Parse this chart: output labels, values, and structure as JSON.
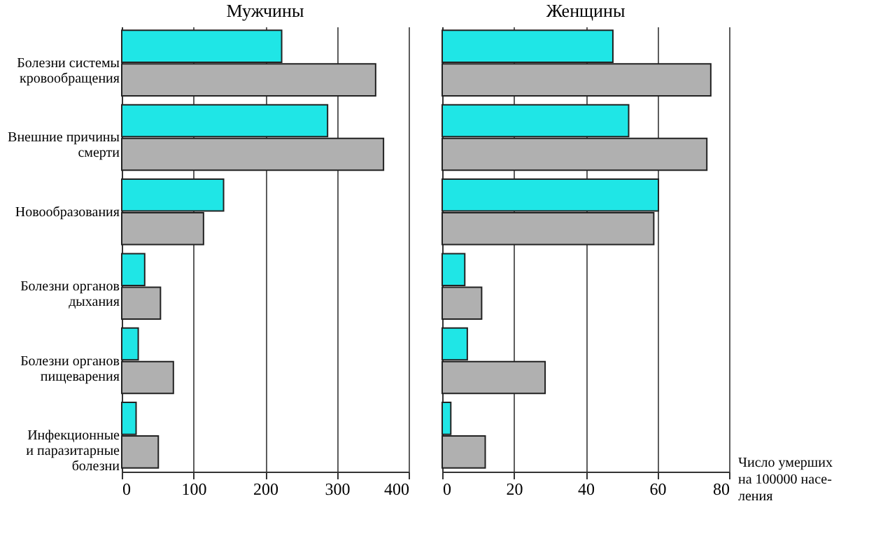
{
  "chart_data": [
    {
      "type": "bar",
      "orientation": "horizontal",
      "title": "Мужчины",
      "categories": [
        "Болезни системы\nкровообращения",
        "Внешние причины\nсмерти",
        "Новообразования",
        "Болезни органов\nдыхания",
        "Болезни органов\nпищеварения",
        "Инфекционные\nи паразитарные\nболезни"
      ],
      "series": [
        {
          "color": "#1fe6e6",
          "values": [
            223,
            287,
            142,
            32,
            23,
            20
          ]
        },
        {
          "color": "#b0b0b0",
          "values": [
            354,
            365,
            114,
            54,
            72,
            51
          ]
        }
      ],
      "xlim": [
        0,
        400
      ],
      "xticks": [
        0,
        100,
        200,
        300,
        400
      ],
      "grid": "x"
    },
    {
      "type": "bar",
      "orientation": "horizontal",
      "title": "Женщины",
      "categories": [
        null,
        null,
        null,
        null,
        null,
        null
      ],
      "series": [
        {
          "color": "#1fe6e6",
          "values": [
            47.6,
            52,
            60.3,
            6.3,
            7,
            2.4
          ]
        },
        {
          "color": "#b0b0b0",
          "values": [
            74.9,
            73.8,
            59,
            11,
            28.7,
            12
          ]
        }
      ],
      "xlim": [
        0,
        80
      ],
      "xticks": [
        0,
        20,
        40,
        60,
        80
      ],
      "grid": "x",
      "tick_labels": "x",
      "xlabel": "Число умерших\nна 100000 насе-\nления"
    }
  ]
}
